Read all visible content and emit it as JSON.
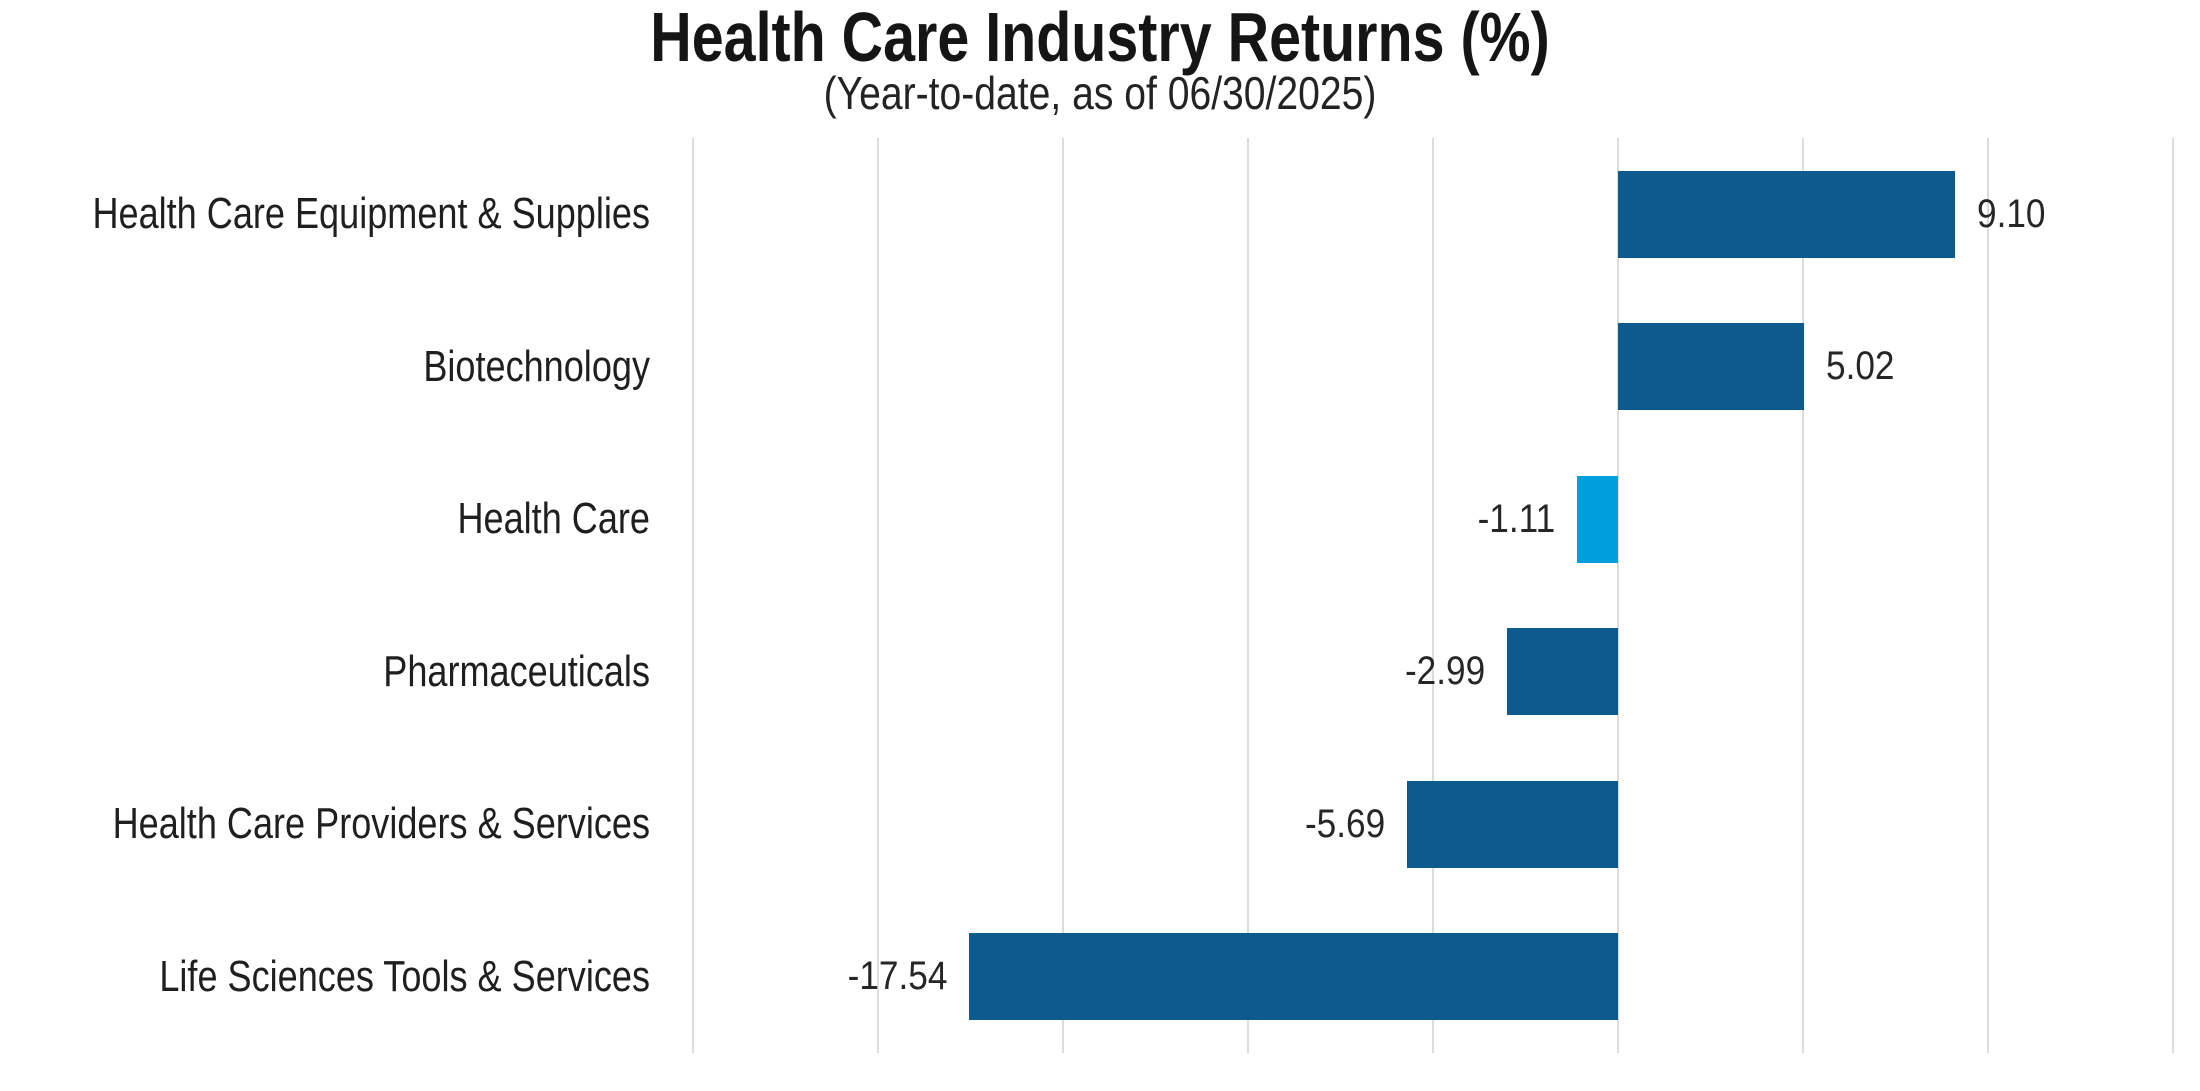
{
  "header": {
    "title": "Health Care Industry Returns (%)",
    "subtitle": "(Year-to-date, as of 06/30/2025)"
  },
  "chart_data": {
    "type": "bar",
    "orientation": "horizontal",
    "title": "Health Care Industry Returns (%)",
    "subtitle": "(Year-to-date, as of 06/30/2025)",
    "categories": [
      "Health Care Equipment & Supplies",
      "Biotechnology",
      "Health Care",
      "Pharmaceuticals",
      "Health Care Providers & Services",
      "Life Sciences Tools & Services"
    ],
    "values": [
      9.1,
      5.02,
      -1.11,
      -2.99,
      -5.69,
      -17.54
    ],
    "value_labels": [
      "9.10",
      "5.02",
      "-1.11",
      "-2.99",
      "-5.69",
      "-17.54"
    ],
    "bar_colors": [
      "#0d5a8e",
      "#0d5a8e",
      "#009fdb",
      "#0d5a8e",
      "#0d5a8e",
      "#0d5a8e"
    ],
    "xlabel": "",
    "ylabel": "",
    "xlim": [
      -25,
      15
    ],
    "grid_step": 5,
    "grid": true,
    "legend": "none",
    "value_label_position": "outside-end",
    "colors": {
      "primary": "#0d5a8e",
      "highlight": "#009fdb",
      "grid": "#dcdcdc",
      "title_text": "#151515",
      "label_text": "#1f1f1f",
      "background": "#ffffff"
    }
  }
}
